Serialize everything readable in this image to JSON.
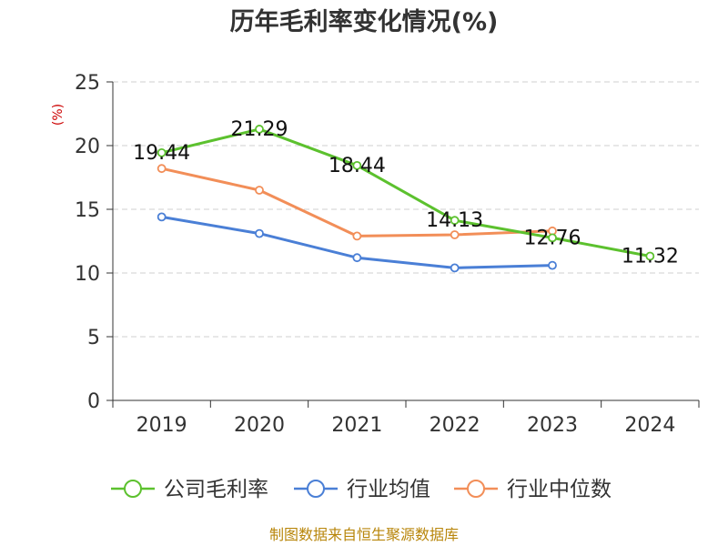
{
  "chart_data": {
    "type": "line",
    "title": "历年毛利率变化情况(%)",
    "y_unit": "(%)",
    "categories": [
      "2019",
      "2020",
      "2021",
      "2022",
      "2023",
      "2024"
    ],
    "ylim": [
      0,
      25
    ],
    "yticks": [
      "0",
      "5",
      "10",
      "15",
      "20",
      "25"
    ],
    "grid": true,
    "legend_position": "bottom",
    "series": [
      {
        "name": "公司毛利率",
        "color": "#5cc12e",
        "values": [
          19.44,
          21.29,
          18.44,
          14.13,
          12.76,
          11.32
        ],
        "labels": [
          "19.44",
          "21.29",
          "18.44",
          "14.13",
          "12.76",
          "11.32"
        ]
      },
      {
        "name": "行业均值",
        "color": "#4a7fd6",
        "values": [
          14.4,
          13.1,
          11.2,
          10.4,
          10.6,
          null
        ]
      },
      {
        "name": "行业中位数",
        "color": "#f28e58",
        "values": [
          18.2,
          16.5,
          12.9,
          13.0,
          13.3,
          null
        ]
      }
    ]
  },
  "source": "制图数据来自恒生聚源数据库"
}
